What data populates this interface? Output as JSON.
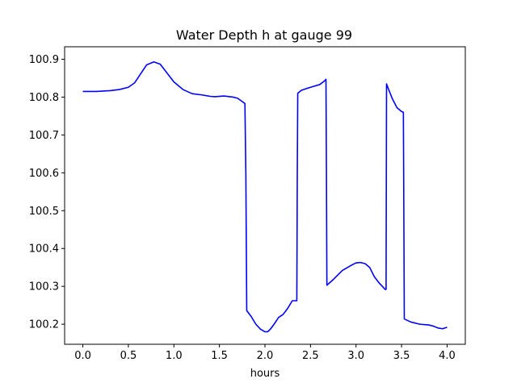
{
  "chart_data": {
    "type": "line",
    "title": "Water Depth h at gauge 99",
    "xlabel": "hours",
    "ylabel": "",
    "xlim": [
      -0.2,
      4.2
    ],
    "ylim": [
      100.147,
      100.933
    ],
    "xticks": [
      0.0,
      0.5,
      1.0,
      1.5,
      2.0,
      2.5,
      3.0,
      3.5,
      4.0
    ],
    "xtick_labels": [
      "0.0",
      "0.5",
      "1.0",
      "1.5",
      "2.0",
      "2.5",
      "3.0",
      "3.5",
      "4.0"
    ],
    "yticks": [
      100.2,
      100.3,
      100.4,
      100.5,
      100.6,
      100.7,
      100.8,
      100.9
    ],
    "ytick_labels": [
      "100.2",
      "100.3",
      "100.4",
      "100.5",
      "100.6",
      "100.7",
      "100.8",
      "100.9"
    ],
    "grid": false,
    "legend": false,
    "series": [
      {
        "color": "#0000ff",
        "x": [
          0.0,
          0.15,
          0.3,
          0.4,
          0.5,
          0.57,
          0.63,
          0.7,
          0.78,
          0.85,
          0.92,
          1.0,
          1.1,
          1.2,
          1.3,
          1.4,
          1.45,
          1.55,
          1.65,
          1.7,
          1.78,
          1.79,
          1.8,
          1.85,
          1.9,
          1.95,
          2.0,
          2.03,
          2.06,
          2.1,
          2.15,
          2.2,
          2.25,
          2.3,
          2.35,
          2.355,
          2.36,
          2.4,
          2.5,
          2.6,
          2.65,
          2.67,
          2.675,
          2.68,
          2.75,
          2.85,
          2.95,
          3.0,
          3.05,
          3.1,
          3.15,
          3.2,
          3.25,
          3.32,
          3.33,
          3.335,
          3.35,
          3.4,
          3.45,
          3.5,
          3.52,
          3.525,
          3.53,
          3.6,
          3.7,
          3.8,
          3.85,
          3.9,
          3.95,
          4.0
        ],
        "y": [
          100.815,
          100.815,
          100.817,
          100.82,
          100.826,
          100.838,
          100.86,
          100.885,
          100.893,
          100.887,
          100.865,
          100.84,
          100.82,
          100.809,
          100.806,
          100.802,
          100.801,
          100.803,
          100.8,
          100.797,
          100.783,
          100.6,
          100.236,
          100.22,
          100.2,
          100.187,
          100.18,
          100.18,
          100.187,
          100.2,
          100.218,
          100.226,
          100.242,
          100.262,
          100.262,
          100.6,
          100.81,
          100.818,
          100.826,
          100.833,
          100.842,
          100.847,
          100.6,
          100.303,
          100.318,
          100.342,
          100.356,
          100.362,
          100.363,
          100.36,
          100.35,
          100.326,
          100.31,
          100.292,
          100.292,
          100.835,
          100.825,
          100.795,
          100.772,
          100.762,
          100.76,
          100.5,
          100.214,
          100.206,
          100.2,
          100.198,
          100.195,
          100.19,
          100.188,
          100.192
        ]
      }
    ]
  }
}
